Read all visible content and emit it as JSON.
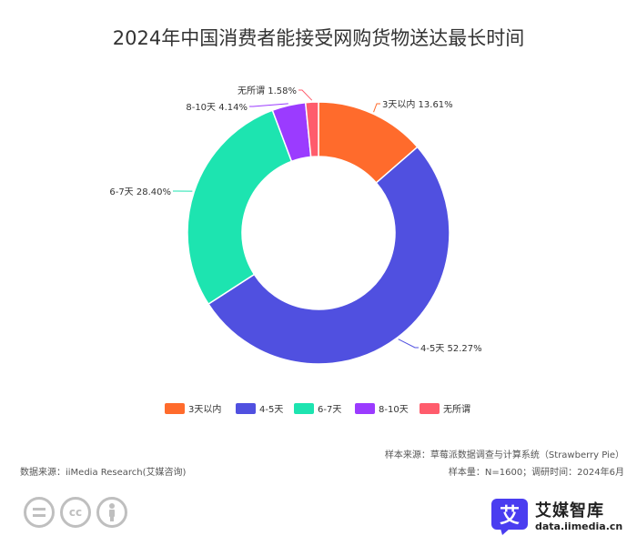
{
  "chart_data": {
    "type": "pie",
    "title": "2024年中国消费者能接受网购货物送达最长时间",
    "categories": [
      "3天以内",
      "4-5天",
      "6-7天",
      "8-10天",
      "无所谓"
    ],
    "values": [
      13.61,
      52.27,
      28.4,
      4.14,
      1.58
    ],
    "value_labels": [
      "13.61%",
      "52.27%",
      "28.40%",
      "4.14%",
      "1.58%"
    ],
    "colors": [
      "#ff6b2c",
      "#5050e0",
      "#1de4b0",
      "#9b3bff",
      "#ff5c6c"
    ],
    "donut": true,
    "legend_position": "bottom"
  },
  "footer": {
    "source": "数据来源：iiMedia Research(艾媒咨询)",
    "sample_source": "样本来源：草莓派数据调查与计算系统（Strawberry Pie）",
    "sample_size": "样本量：N=1600；调研时间：2024年6月"
  },
  "brand": {
    "logo_char": "艾",
    "name": "艾媒智库",
    "url": "data.iimedia.cn",
    "color": "#4a3df0"
  },
  "license_icons": [
    "equals-icon",
    "cc-icon",
    "person-icon"
  ]
}
